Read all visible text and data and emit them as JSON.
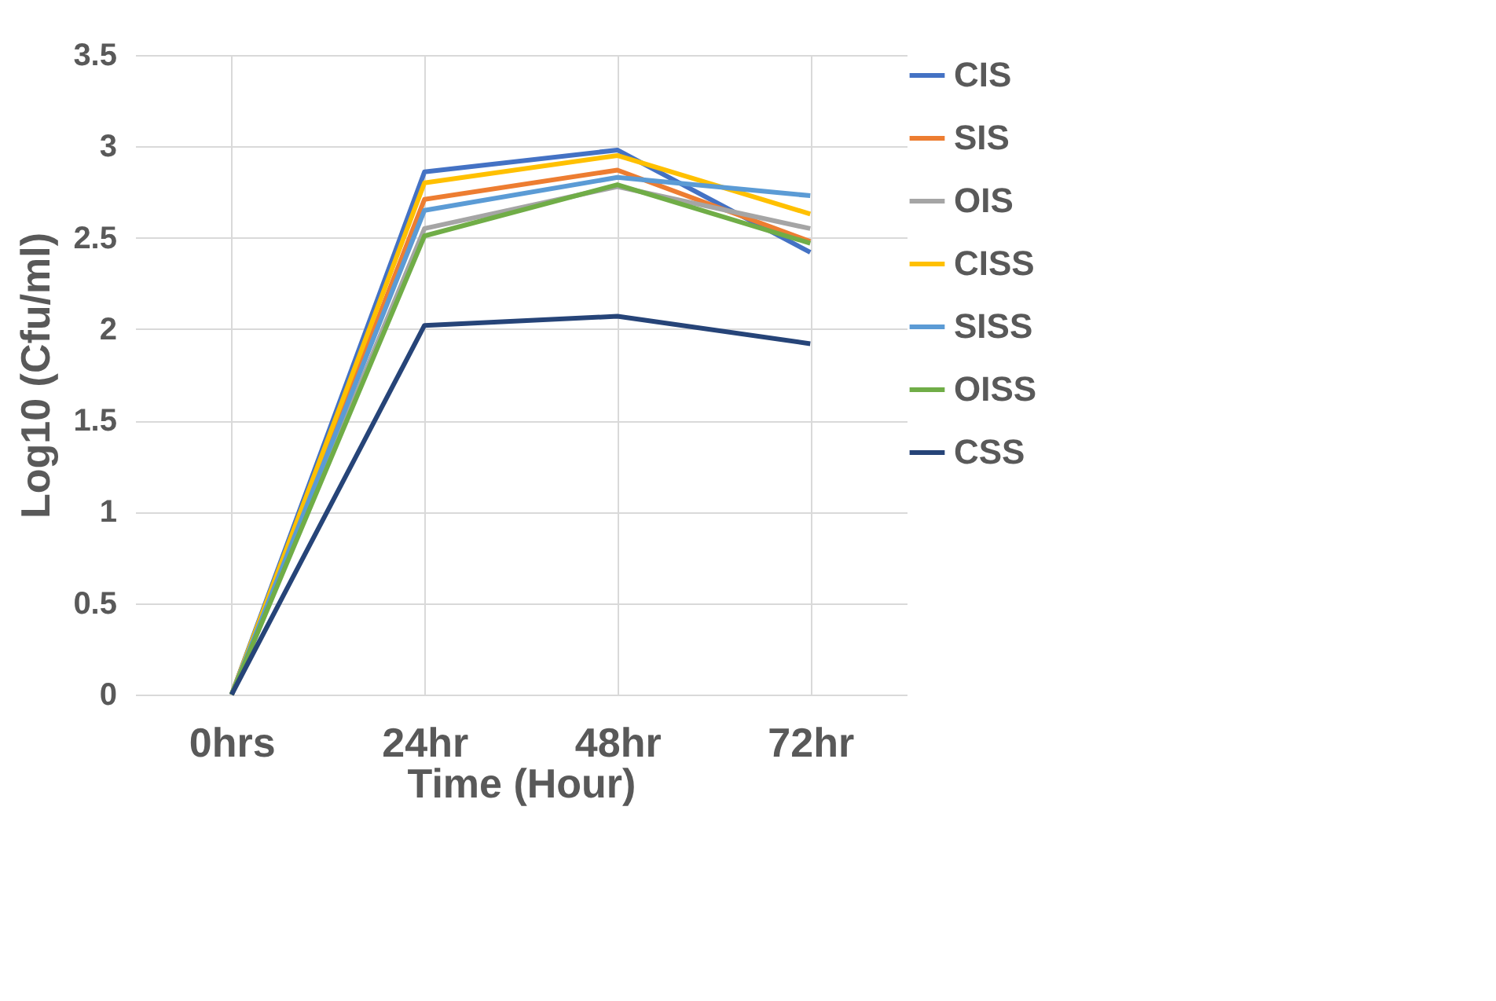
{
  "chart_data": {
    "type": "line",
    "xlabel": "Time (Hour)",
    "ylabel": "Log10 (Cfu/ml)",
    "categories": [
      "0hrs",
      "24hr",
      "48hr",
      "72hr"
    ],
    "ylim": [
      0,
      3.5
    ],
    "yticks": [
      0,
      0.5,
      1,
      1.5,
      2,
      2.5,
      3,
      3.5
    ],
    "grid": true,
    "legend": "right",
    "marker": "none",
    "line_style": "solid",
    "series": [
      {
        "name": "CIS",
        "color": "#4472c4",
        "values": [
          0,
          2.86,
          2.98,
          2.42
        ]
      },
      {
        "name": "SIS",
        "color": "#ed7d31",
        "values": [
          0,
          2.71,
          2.87,
          2.48
        ]
      },
      {
        "name": "OIS",
        "color": "#a5a5a5",
        "values": [
          0,
          2.55,
          2.78,
          2.55
        ]
      },
      {
        "name": "CISS",
        "color": "#ffc000",
        "values": [
          0,
          2.8,
          2.95,
          2.63
        ]
      },
      {
        "name": "SISS",
        "color": "#5b9bd5",
        "values": [
          0,
          2.65,
          2.83,
          2.73
        ]
      },
      {
        "name": "OISS",
        "color": "#70ad47",
        "values": [
          0,
          2.51,
          2.79,
          2.47
        ]
      },
      {
        "name": "CSS",
        "color": "#264478",
        "values": [
          0,
          2.02,
          2.07,
          1.92
        ]
      }
    ]
  }
}
